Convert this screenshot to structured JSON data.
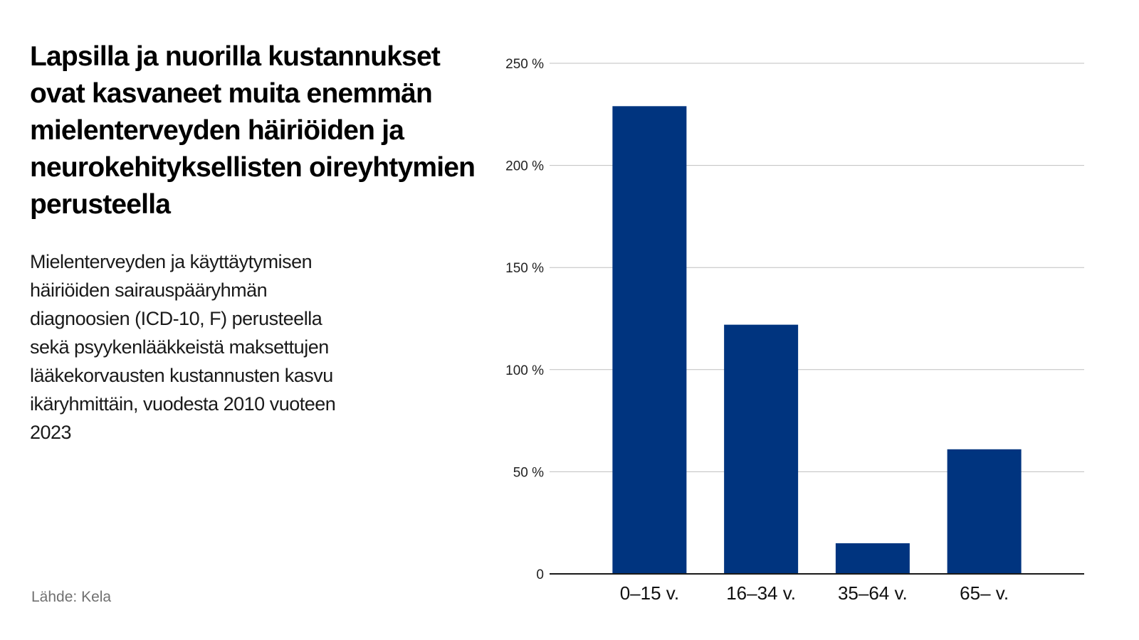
{
  "title": "Lapsilla ja nuorilla kustannukset ovat kasvaneet muita enemmän mielenterveyden häiriöiden ja neurokehityksellisten oireyhtymien perusteella",
  "subtitle": "Mielenterveyden ja käyttäytymisen häiriöiden sairauspääryhmän diagnoosien (ICD-10, F) perusteella sekä psyykenlääkkeistä maksettujen lääkekorvausten kustannusten kasvu ikäryhmittäin, vuodesta 2010 vuoteen 2023",
  "source": "Lähde: Kela",
  "colors": {
    "bar": "#00347F",
    "grid": "#BFBFBF",
    "axis": "#1A1A1A"
  },
  "chart_data": {
    "type": "bar",
    "categories": [
      "0–15 v.",
      "16–34 v.",
      "35–64 v.",
      "65– v."
    ],
    "values": [
      229,
      122,
      15,
      61
    ],
    "ylim": [
      0,
      250
    ],
    "yticks": [
      0,
      50,
      100,
      150,
      200,
      250
    ],
    "ytick_labels": [
      "0",
      "50 %",
      "100 %",
      "150 %",
      "200 %",
      "250 %"
    ],
    "grid": true,
    "xlabel": "",
    "ylabel": ""
  }
}
